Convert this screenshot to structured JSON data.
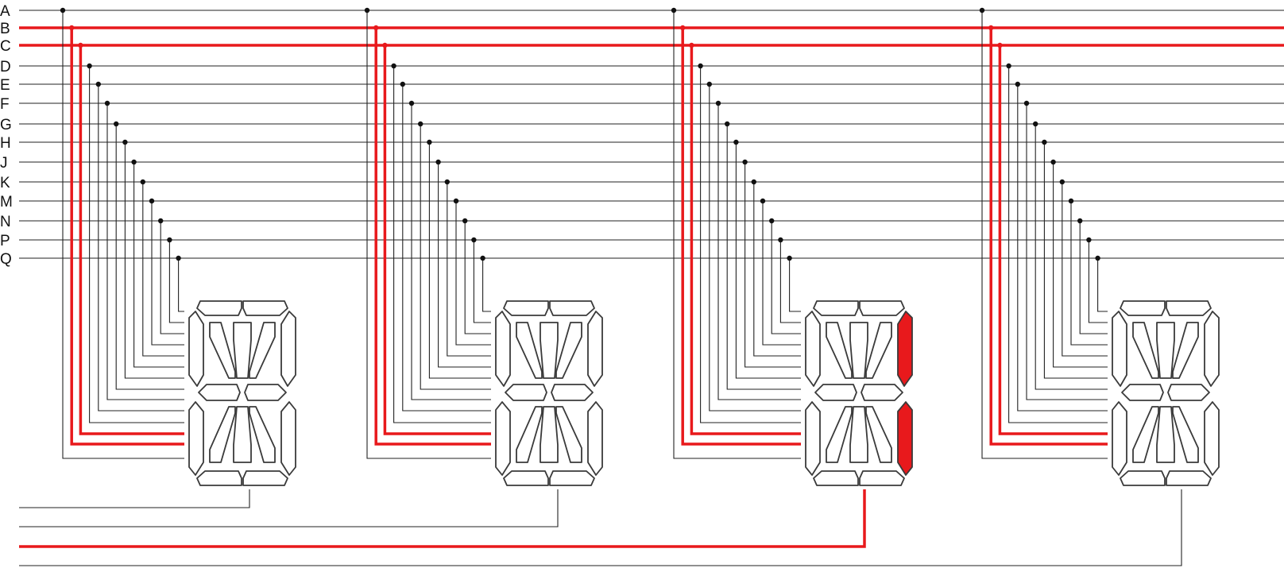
{
  "diagram": {
    "bus_lines": [
      {
        "label": "A",
        "active": false
      },
      {
        "label": "B",
        "active": true
      },
      {
        "label": "C",
        "active": true
      },
      {
        "label": "D",
        "active": false
      },
      {
        "label": "E",
        "active": false
      },
      {
        "label": "F",
        "active": false
      },
      {
        "label": "G",
        "active": false
      },
      {
        "label": "H",
        "active": false
      },
      {
        "label": "J",
        "active": false
      },
      {
        "label": "K",
        "active": false
      },
      {
        "label": "M",
        "active": false
      },
      {
        "label": "N",
        "active": false
      },
      {
        "label": "P",
        "active": false
      },
      {
        "label": "Q",
        "active": false
      }
    ],
    "displays": [
      {
        "digit": 1,
        "common_active": false,
        "lit_segments": []
      },
      {
        "digit": 2,
        "common_active": false,
        "lit_segments": []
      },
      {
        "digit": 3,
        "common_active": true,
        "lit_segments": [
          "B",
          "C"
        ]
      },
      {
        "digit": 4,
        "common_active": false,
        "lit_segments": []
      }
    ],
    "colors": {
      "active": "#e8191c",
      "wire": "#222222",
      "segment_outline": "#3a3a3a",
      "segment_off": "#ffffff",
      "background": "#ffffff"
    }
  }
}
